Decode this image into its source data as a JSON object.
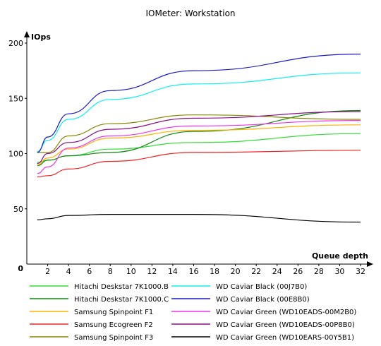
{
  "chart_data": {
    "type": "line",
    "title": "IOMeter: Workstation",
    "xlabel": "Queue depth",
    "ylabel": "IOps",
    "origin_label": "0",
    "x_ticks": [
      "2",
      "4",
      "6",
      "8",
      "10",
      "12",
      "14",
      "16",
      "18",
      "20",
      "22",
      "24",
      "26",
      "28",
      "30",
      "32"
    ],
    "y_ticks": [
      "50",
      "100",
      "150",
      "200"
    ],
    "xlim": [
      0,
      32
    ],
    "ylim": [
      0,
      200
    ],
    "grid": false,
    "legend_position": "bottom",
    "x": [
      1,
      2,
      4,
      8,
      16,
      32
    ],
    "series": [
      {
        "name": "Hitachi Deskstar 7K1000.B",
        "color": "#33dd33",
        "values": [
          92,
          94,
          98,
          104,
          110,
          118
        ]
      },
      {
        "name": "Hitachi Deskstar 7K1000.C",
        "color": "#118811",
        "values": [
          89,
          94,
          98,
          101,
          120,
          139
        ]
      },
      {
        "name": "Samsung Spinpoint F1",
        "color": "#ffb000",
        "values": [
          90,
          96,
          104,
          114,
          121,
          126
        ]
      },
      {
        "name": "Samsung Ecogreen F2",
        "color": "#ee2222",
        "values": [
          79,
          80,
          86,
          93,
          101,
          103
        ]
      },
      {
        "name": "Samsung Spinpoint F3",
        "color": "#888800",
        "values": [
          101,
          101,
          116,
          127,
          135,
          131
        ]
      },
      {
        "name": "WD Caviar Black (00J7B0)",
        "color": "#11eeee",
        "values": [
          102,
          112,
          131,
          149,
          163,
          173
        ]
      },
      {
        "name": "WD Caviar Black (00E8B0)",
        "color": "#1a1acc",
        "values": [
          101,
          115,
          136,
          157,
          175,
          190
        ]
      },
      {
        "name": "WD Caviar Green (WD10EADS-00M2B0)",
        "color": "#ee33ee",
        "values": [
          82,
          88,
          105,
          116,
          125,
          130
        ]
      },
      {
        "name": "WD Caviar Green (WD10EADS-00P8B0)",
        "color": "#881188",
        "values": [
          91,
          100,
          110,
          122,
          132,
          138
        ]
      },
      {
        "name": "WD Caviar Green (WD10EARS-00Y5B1)",
        "color": "#000000",
        "values": [
          40,
          41,
          44,
          45,
          45,
          38
        ]
      }
    ]
  }
}
